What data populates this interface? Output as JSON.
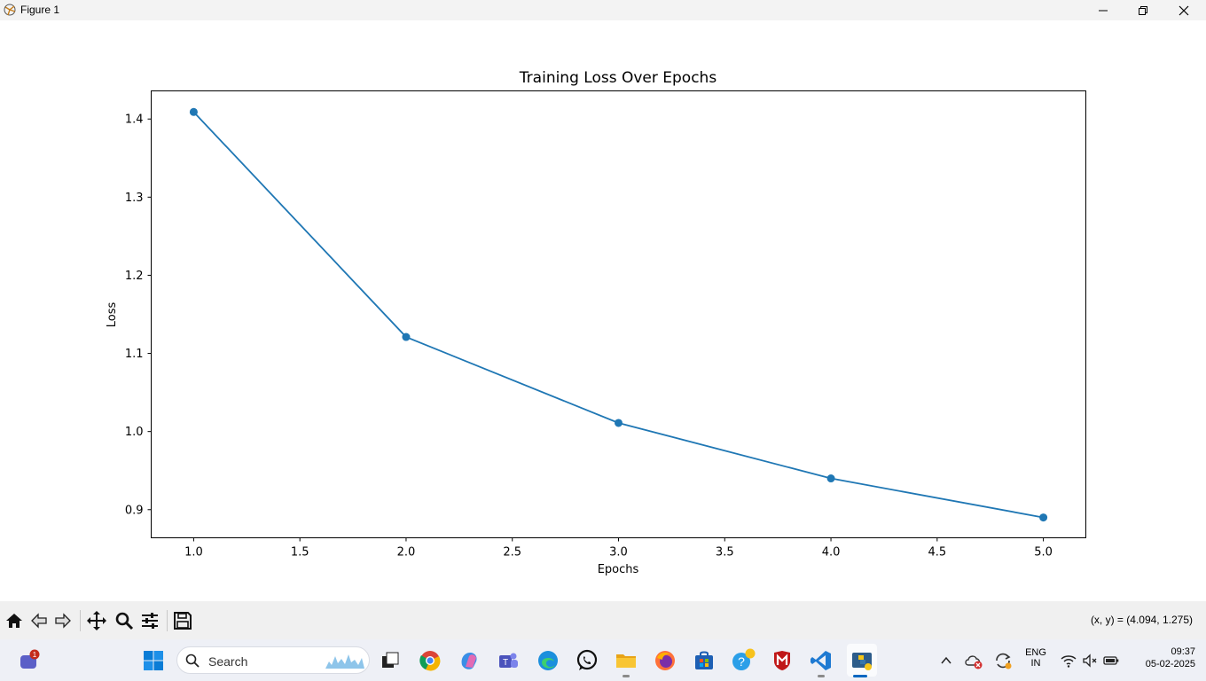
{
  "window": {
    "title": "Figure 1"
  },
  "toolbar": {
    "coords": "(x, y) = (4.094, 1.275)",
    "tools": [
      "home-icon",
      "back-icon",
      "forward-icon",
      "pan-icon",
      "zoom-icon",
      "configure-icon",
      "save-icon"
    ]
  },
  "taskbar": {
    "search_placeholder": "Search",
    "notification_badge": "1",
    "lang": "ENG",
    "region": "IN",
    "time": "09:37",
    "date": "05-02-2025"
  },
  "colors": {
    "line": "#1f77b4",
    "toolbar_bg": "#f0f0f0",
    "taskbar_bg": "#eef0f6"
  },
  "chart_data": {
    "type": "line",
    "title": "Training Loss Over Epochs",
    "xlabel": "Epochs",
    "ylabel": "Loss",
    "x": [
      1,
      2,
      3,
      4,
      5
    ],
    "series": [
      {
        "values": [
          1.409,
          1.121,
          1.011,
          0.94,
          0.89
        ],
        "marker": "circle"
      }
    ],
    "xlim": [
      0.8,
      5.2
    ],
    "ylim": [
      0.864,
      1.436
    ],
    "xticks": [
      "1.0",
      "1.5",
      "2.0",
      "2.5",
      "3.0",
      "3.5",
      "4.0",
      "4.5",
      "5.0"
    ],
    "yticks": [
      "0.9",
      "1.0",
      "1.1",
      "1.2",
      "1.3",
      "1.4"
    ],
    "grid": false
  }
}
